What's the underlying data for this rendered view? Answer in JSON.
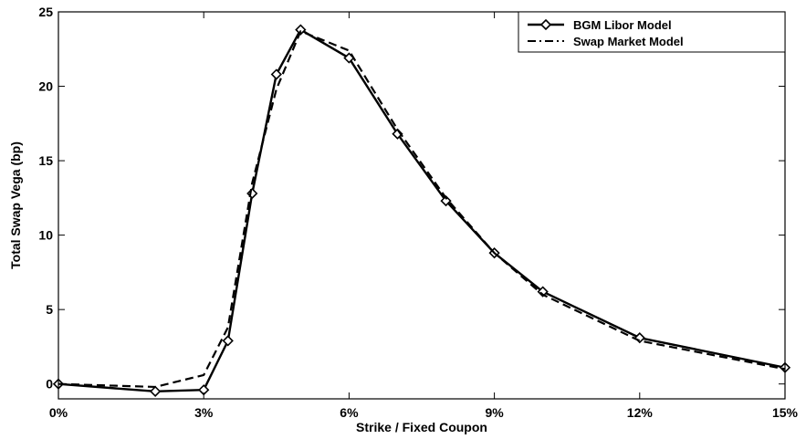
{
  "chart_data": {
    "type": "line",
    "title": "",
    "xlabel": "Strike / Fixed Coupon",
    "ylabel": "Total Swap Vega (bp)",
    "xlim": [
      0,
      15
    ],
    "ylim": [
      -1,
      25
    ],
    "x_ticks": [
      0,
      3,
      6,
      9,
      12,
      15
    ],
    "x_tick_labels": [
      "0%",
      "3%",
      "6%",
      "9%",
      "12%",
      "15%"
    ],
    "y_ticks": [
      0,
      5,
      10,
      15,
      20,
      25
    ],
    "y_tick_labels": [
      "0",
      "5",
      "10",
      "15",
      "20",
      "25"
    ],
    "grid": false,
    "legend_position": "top-right",
    "series": [
      {
        "name": "BGM Libor Model",
        "style": "solid-diamond",
        "color": "#000000",
        "x": [
          0,
          2,
          3,
          3.5,
          4,
          4.5,
          5,
          6,
          7,
          8,
          9,
          10,
          12,
          15
        ],
        "y": [
          0,
          -0.5,
          -0.4,
          2.9,
          12.8,
          20.8,
          23.8,
          21.9,
          16.8,
          12.3,
          8.8,
          6.2,
          3.1,
          1.1
        ]
      },
      {
        "name": "Swap Market Model",
        "style": "dashed",
        "color": "#000000",
        "x": [
          0,
          2,
          3,
          3.5,
          4,
          4.5,
          5,
          6,
          7,
          8,
          9,
          10,
          12,
          15
        ],
        "y": [
          0,
          -0.2,
          0.6,
          3.8,
          13.5,
          19.8,
          23.7,
          22.4,
          17.1,
          12.5,
          8.8,
          6.0,
          2.9,
          1.0
        ]
      }
    ]
  }
}
